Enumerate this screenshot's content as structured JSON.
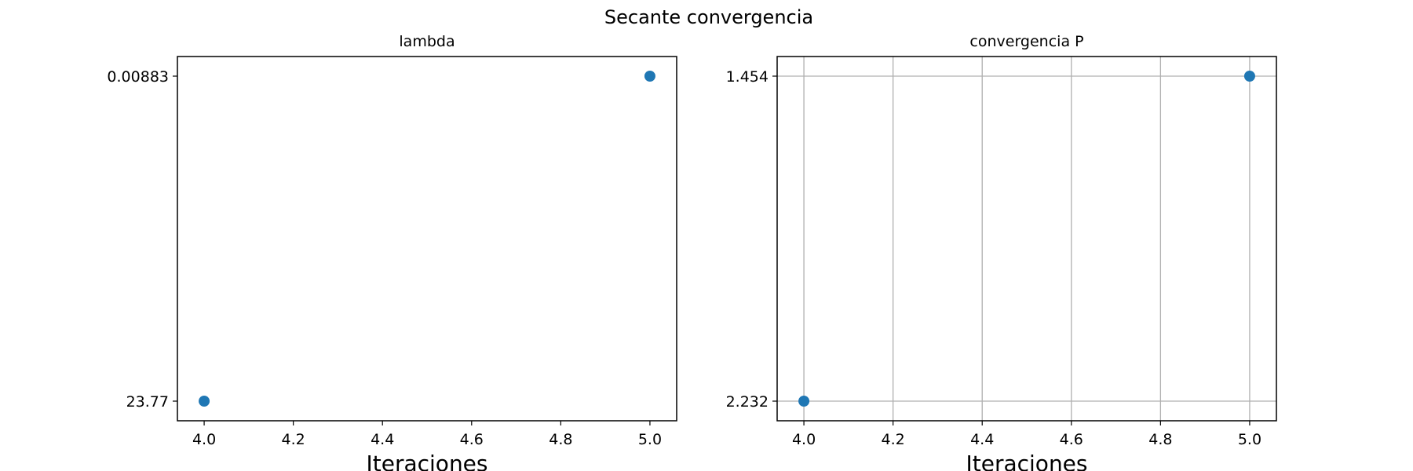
{
  "figure": {
    "suptitle": "Secante convergencia"
  },
  "colors": {
    "marker": "#1f77b4",
    "grid": "#b0b0b0",
    "axes": "#000000"
  },
  "chart_data": [
    {
      "type": "scatter",
      "title": "lambda",
      "xlabel": "Iteraciones",
      "ylabel": "",
      "grid": false,
      "x_ticks": [
        "4.0",
        "4.2",
        "4.4",
        "4.6",
        "4.8",
        "5.0"
      ],
      "y_ticks": [
        "0.00883",
        "23.77"
      ],
      "xlim": [
        3.94,
        5.06
      ],
      "note_y_axis": "categorical: bottom category '23.77', top category '0.00883'",
      "series": [
        {
          "x": [
            4.0,
            5.0
          ],
          "y": [
            "23.77",
            "0.00883"
          ]
        }
      ]
    },
    {
      "type": "scatter",
      "title": "convergencia P",
      "xlabel": "Iteraciones",
      "ylabel": "",
      "grid": true,
      "x_ticks": [
        "4.0",
        "4.2",
        "4.4",
        "4.6",
        "4.8",
        "5.0"
      ],
      "y_ticks": [
        "1.454",
        "2.232"
      ],
      "xlim": [
        3.94,
        5.06
      ],
      "series": [
        {
          "x": [
            4.0,
            5.0
          ],
          "y": [
            "2.232",
            "1.454"
          ]
        }
      ]
    }
  ]
}
